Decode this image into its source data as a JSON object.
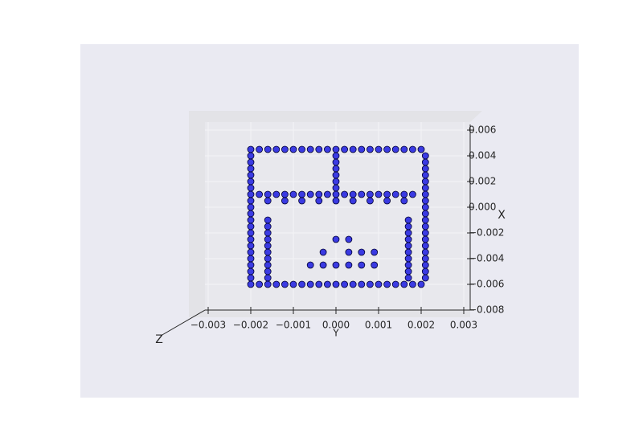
{
  "chart_data": {
    "type": "scatter",
    "color": "#0000dd",
    "edgecolor": "#000033",
    "grid": true,
    "xlabel": "Y",
    "ylabel": "X",
    "zlabel": "Z",
    "xlim": [
      -0.003,
      0.003
    ],
    "xticks": [
      {
        "value": -0.003,
        "label": "−0.003"
      },
      {
        "value": -0.002,
        "label": "−0.002"
      },
      {
        "value": -0.001,
        "label": "−0.001"
      },
      {
        "value": 0,
        "label": "0.000"
      },
      {
        "value": 0.001,
        "label": "0.001"
      },
      {
        "value": 0.002,
        "label": "0.002"
      },
      {
        "value": 0.003,
        "label": "0.003"
      }
    ],
    "ylim": [
      -0.008,
      0.006
    ],
    "yticks": [
      {
        "value": 0.006,
        "label": "0.006"
      },
      {
        "value": 0.004,
        "label": "0.004"
      },
      {
        "value": 0.002,
        "label": "0.002"
      },
      {
        "value": 0,
        "label": "0.000"
      },
      {
        "value": -0.002,
        "label": "−0.002"
      },
      {
        "value": -0.004,
        "label": "−0.004"
      },
      {
        "value": -0.006,
        "label": "−0.006"
      },
      {
        "value": -0.008,
        "label": "−0.008"
      }
    ],
    "x": [
      -0.002,
      -0.0018,
      -0.0016,
      -0.0014,
      -0.0012,
      -0.001,
      -0.0008,
      -0.0006,
      -0.0004,
      -0.0002,
      0,
      0.0002,
      0.0004,
      0.0006,
      0.0008,
      0.001,
      0.0012,
      0.0014,
      0.0016,
      0.0018,
      0.002,
      -0.002,
      -0.0018,
      -0.0016,
      -0.0014,
      -0.0012,
      -0.001,
      -0.0008,
      -0.0006,
      -0.0004,
      -0.0002,
      0,
      0.0002,
      0.0004,
      0.0006,
      0.0008,
      0.001,
      0.0012,
      0.0014,
      0.0016,
      0.0018,
      0.002,
      -0.002,
      -0.002,
      -0.002,
      -0.002,
      -0.002,
      -0.002,
      -0.002,
      -0.002,
      -0.002,
      -0.002,
      -0.002,
      -0.002,
      -0.002,
      -0.002,
      -0.002,
      -0.002,
      -0.002,
      -0.002,
      -0.002,
      -0.002,
      0.0021,
      0.0021,
      0.0021,
      0.0021,
      0.0021,
      0.0021,
      0.0021,
      0.0021,
      0.0021,
      0.0021,
      0.0021,
      0.0021,
      0.0021,
      0.0021,
      0.0021,
      0.0021,
      0.0021,
      0.0021,
      0.0021,
      0.0021,
      -0.0018,
      -0.0016,
      -0.0014,
      -0.0012,
      -0.001,
      -0.0008,
      -0.0006,
      -0.0004,
      -0.0002,
      0,
      0.0002,
      0.0004,
      0.0006,
      0.0008,
      0.001,
      0.0012,
      0.0014,
      0.0016,
      0.0018,
      -0.0016,
      -0.0012,
      -0.0008,
      -0.0004,
      0,
      0.0004,
      0.0008,
      0.0012,
      0.0016,
      0,
      0,
      0,
      0,
      0,
      0,
      -0.0006,
      -0.0003,
      0,
      0.0003,
      0.0006,
      0.0009,
      -0.0003,
      0.0003,
      0.0006,
      0.0009,
      0,
      0.0003,
      -0.0016,
      -0.0016,
      -0.0016,
      -0.0016,
      -0.0016,
      -0.0016,
      -0.0016,
      -0.0016,
      -0.0016,
      -0.0016,
      0.0017,
      0.0017,
      0.0017,
      0.0017,
      0.0017,
      0.0017,
      0.0017,
      0.0017,
      0.0017,
      0.0017
    ],
    "y": [
      0.0045,
      0.0045,
      0.0045,
      0.0045,
      0.0045,
      0.0045,
      0.0045,
      0.0045,
      0.0045,
      0.0045,
      0.0045,
      0.0045,
      0.0045,
      0.0045,
      0.0045,
      0.0045,
      0.0045,
      0.0045,
      0.0045,
      0.0045,
      0.0045,
      -0.006,
      -0.006,
      -0.006,
      -0.006,
      -0.006,
      -0.006,
      -0.006,
      -0.006,
      -0.006,
      -0.006,
      -0.006,
      -0.006,
      -0.006,
      -0.006,
      -0.006,
      -0.006,
      -0.006,
      -0.006,
      -0.006,
      -0.006,
      -0.006,
      0.004,
      0.0035,
      0.003,
      0.0025,
      0.002,
      0.0015,
      0.001,
      0.0005,
      0,
      -0.0005,
      -0.001,
      -0.0015,
      -0.002,
      -0.0025,
      -0.003,
      -0.0035,
      -0.004,
      -0.0045,
      -0.005,
      -0.0055,
      0.004,
      0.0035,
      0.003,
      0.0025,
      0.002,
      0.0015,
      0.001,
      0.0005,
      0,
      -0.0005,
      -0.001,
      -0.0015,
      -0.002,
      -0.0025,
      -0.003,
      -0.0035,
      -0.004,
      -0.0045,
      -0.005,
      -0.0055,
      0.001,
      0.001,
      0.001,
      0.001,
      0.001,
      0.001,
      0.001,
      0.001,
      0.001,
      0.001,
      0.001,
      0.001,
      0.001,
      0.001,
      0.001,
      0.001,
      0.001,
      0.001,
      0.001,
      0.0005,
      0.0005,
      0.0005,
      0.0005,
      0.0005,
      0.0005,
      0.0005,
      0.0005,
      0.0005,
      0.004,
      0.0035,
      0.003,
      0.0025,
      0.002,
      0.0015,
      -0.0045,
      -0.0045,
      -0.0045,
      -0.0045,
      -0.0045,
      -0.0045,
      -0.0035,
      -0.0035,
      -0.0035,
      -0.0035,
      -0.0025,
      -0.0025,
      -0.001,
      -0.0015,
      -0.002,
      -0.0025,
      -0.003,
      -0.0035,
      -0.004,
      -0.0045,
      -0.005,
      -0.0055,
      -0.001,
      -0.0015,
      -0.002,
      -0.0025,
      -0.003,
      -0.0035,
      -0.004,
      -0.0045,
      -0.005,
      -0.0055
    ]
  }
}
